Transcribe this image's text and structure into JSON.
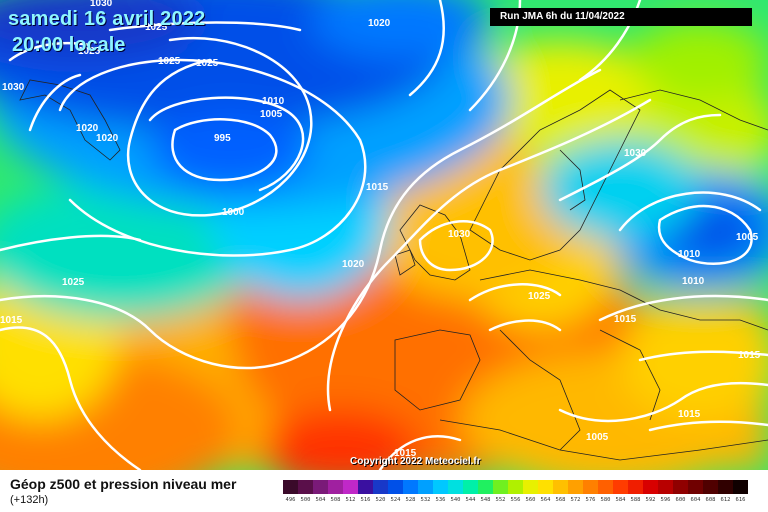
{
  "header": {
    "date": "samedi 16 avril 2022",
    "time": "20:00 locale",
    "run": "Run JMA 6h du 11/04/2022"
  },
  "copyright": "Copyright 2022 Meteociel.fr",
  "footer": {
    "title": "Géop z500 et pression niveau mer",
    "subtitle": "(+132h)"
  },
  "scale": {
    "labels": [
      "496",
      "500",
      "504",
      "508",
      "512",
      "516",
      "520",
      "524",
      "528",
      "532",
      "536",
      "540",
      "544",
      "548",
      "552",
      "556",
      "560",
      "564",
      "568",
      "572",
      "576",
      "580",
      "584",
      "588",
      "592",
      "596",
      "600",
      "604",
      "608",
      "612",
      "616"
    ],
    "colors": [
      "#3a0a2a",
      "#5a0f4a",
      "#7a1a78",
      "#a020a0",
      "#c028c8",
      "#3a10a0",
      "#1838c8",
      "#0050e8",
      "#0078ff",
      "#00a0ff",
      "#00c8ff",
      "#00e0e0",
      "#00f0a8",
      "#20f060",
      "#70f020",
      "#b0f000",
      "#e8f000",
      "#ffe000",
      "#ffc000",
      "#ffa000",
      "#ff8000",
      "#ff6000",
      "#ff3c00",
      "#f01e00",
      "#d80000",
      "#b80000",
      "#900000",
      "#700000",
      "#500000",
      "#300000",
      "#100000"
    ]
  },
  "isobars": [
    "1030",
    "1025",
    "1025",
    "1025",
    "1010",
    "1005",
    "1020",
    "1020",
    "995",
    "1000",
    "1015",
    "1020",
    "1030",
    "1025",
    "1020",
    "1015",
    "1030",
    "1005",
    "1010",
    "1010",
    "1015",
    "1015",
    "1005",
    "1025",
    "1015",
    "1015",
    "1025",
    "1030"
  ]
}
